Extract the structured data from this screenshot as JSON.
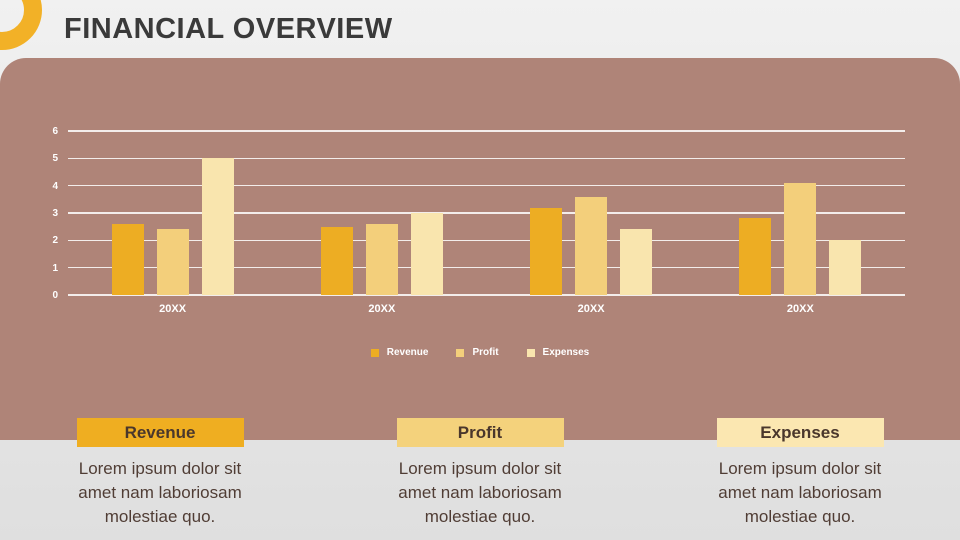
{
  "header": {
    "title": "FINANCIAL OVERVIEW"
  },
  "chart_data": {
    "type": "bar",
    "title": "",
    "categories": [
      "20XX",
      "20XX",
      "20XX",
      "20XX"
    ],
    "series": [
      {
        "name": "Revenue",
        "color": "#edad23",
        "values": [
          2.6,
          2.5,
          3.2,
          2.8
        ]
      },
      {
        "name": "Profit",
        "color": "#f3cf7b",
        "values": [
          2.4,
          2.6,
          3.6,
          4.1
        ]
      },
      {
        "name": "Expenses",
        "color": "#f9e5ae",
        "values": [
          5.0,
          3.0,
          2.4,
          2.0
        ]
      }
    ],
    "xlabel": "",
    "ylabel": "",
    "ylim": [
      0,
      6
    ],
    "yticks": [
      0,
      1,
      2,
      3,
      4,
      5,
      6
    ],
    "grid": true,
    "gridline_color": "#ffffff",
    "plot_background": "#af8478",
    "legend_position": "bottom"
  },
  "cards": [
    {
      "title": "Revenue",
      "color": "#efae21",
      "body": "Lorem ipsum dolor sit amet nam laboriosam molestiae quo."
    },
    {
      "title": "Profit",
      "color": "#f4d27c",
      "body": "Lorem ipsum dolor sit amet nam laboriosam molestiae quo."
    },
    {
      "title": "Expenses",
      "color": "#fbe7b1",
      "body": "Lorem ipsum dolor sit amet nam laboriosam molestiae quo."
    }
  ]
}
